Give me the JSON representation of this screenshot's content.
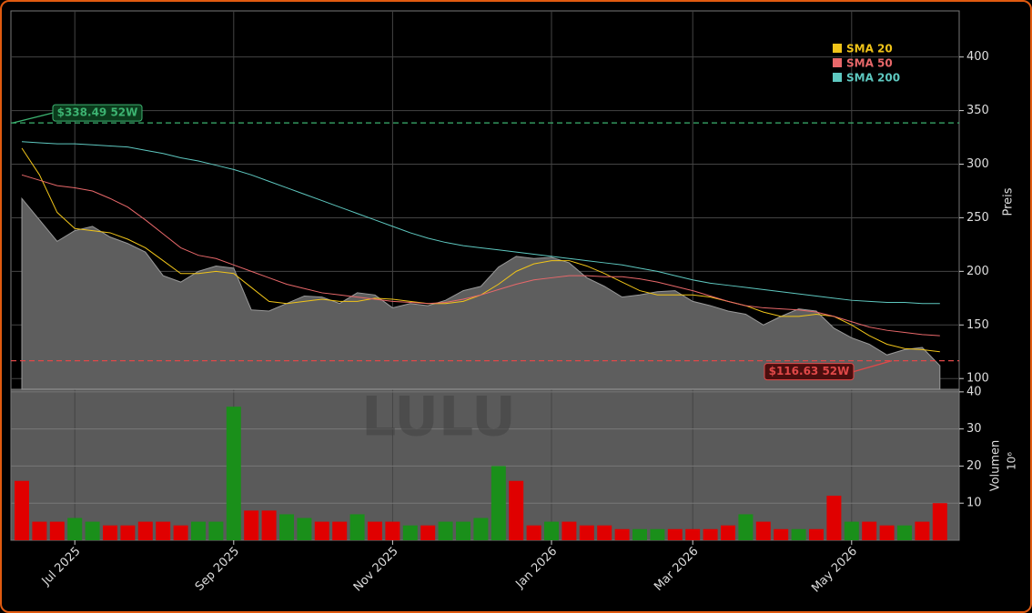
{
  "chart_data": [
    {
      "type": "area",
      "ylabel": "Preis",
      "watermark": "LULU",
      "values": [
        268,
        248,
        228,
        238,
        242,
        232,
        226,
        218,
        196,
        190,
        200,
        205,
        203,
        164,
        163,
        170,
        177,
        176,
        170,
        180,
        178,
        166,
        170,
        168,
        173,
        182,
        186,
        204,
        214,
        212,
        213,
        208,
        194,
        186,
        176,
        178,
        181,
        182,
        172,
        168,
        163,
        160,
        150,
        158,
        165,
        163,
        147,
        138,
        132,
        122,
        127,
        129,
        112
      ],
      "color": "#5e5e5e",
      "series": [
        {
          "name": "SMA 20",
          "color": "#f0c419",
          "values": [
            315,
            290,
            255,
            240,
            238,
            236,
            230,
            222,
            210,
            198,
            198,
            200,
            198,
            185,
            172,
            170,
            172,
            174,
            172,
            172,
            175,
            174,
            172,
            170,
            170,
            172,
            178,
            188,
            200,
            207,
            210,
            210,
            205,
            198,
            190,
            182,
            178,
            178,
            178,
            176,
            172,
            168,
            162,
            158,
            158,
            160,
            158,
            150,
            140,
            132,
            128,
            127,
            125
          ]
        },
        {
          "name": "SMA 50",
          "color": "#e8686a",
          "values": [
            290,
            285,
            280,
            278,
            275,
            268,
            260,
            248,
            235,
            222,
            215,
            212,
            206,
            200,
            194,
            188,
            184,
            180,
            178,
            176,
            174,
            172,
            171,
            170,
            171,
            174,
            178,
            183,
            188,
            192,
            194,
            196,
            196,
            195,
            195,
            193,
            190,
            186,
            182,
            177,
            172,
            168,
            166,
            165,
            164,
            162,
            158,
            153,
            148,
            145,
            143,
            141,
            140
          ]
        },
        {
          "name": "SMA 200",
          "color": "#5ec8c0",
          "values": [
            321,
            320,
            319,
            319,
            318,
            317,
            316,
            313,
            310,
            306,
            303,
            299,
            295,
            290,
            284,
            278,
            272,
            266,
            260,
            254,
            248,
            242,
            236,
            231,
            227,
            224,
            222,
            220,
            218,
            216,
            214,
            212,
            210,
            208,
            206,
            203,
            200,
            196,
            192,
            189,
            187,
            185,
            183,
            181,
            179,
            177,
            175,
            173,
            172,
            171,
            171,
            170,
            170
          ]
        }
      ],
      "lines": [
        {
          "value": 338.49,
          "label": "$338.49 52W",
          "color": "#3cb371"
        },
        {
          "value": 116.63,
          "label": "$116.63 52W",
          "color": "#e04848"
        }
      ],
      "ylim": [
        90,
        443
      ],
      "yticks": [
        100,
        150,
        200,
        250,
        300,
        350,
        400
      ],
      "grid": true,
      "legend": "top-right"
    },
    {
      "type": "bar",
      "ylabel": "Volumen",
      "unit_label": "10⁶",
      "categories": [
        null,
        null,
        null,
        "Jul 2025",
        null,
        null,
        null,
        null,
        null,
        null,
        null,
        null,
        "Sep 2025",
        null,
        null,
        null,
        null,
        null,
        null,
        null,
        null,
        "Nov 2025",
        null,
        null,
        null,
        null,
        null,
        null,
        null,
        null,
        "Jan 2026",
        null,
        null,
        null,
        null,
        null,
        null,
        null,
        "Mar 2026",
        null,
        null,
        null,
        null,
        null,
        null,
        null,
        null,
        "May 2026",
        null,
        null,
        null,
        null,
        null
      ],
      "values": [
        16,
        5,
        5,
        6,
        5,
        4,
        4,
        5,
        5,
        4,
        5,
        5,
        36,
        8,
        8,
        7,
        6,
        5,
        5,
        7,
        5,
        5,
        4,
        4,
        5,
        5,
        6,
        20,
        16,
        4,
        5,
        5,
        4,
        4,
        3,
        3,
        3,
        3,
        3,
        3,
        4,
        7,
        5,
        3,
        3,
        3,
        12,
        5,
        5,
        4,
        4,
        5,
        10
      ],
      "colors": [
        "#e00000",
        "#e00000",
        "#e00000",
        "#1a8f1a",
        "#1a8f1a",
        "#e00000",
        "#e00000",
        "#e00000",
        "#e00000",
        "#e00000",
        "#1a8f1a",
        "#1a8f1a",
        "#1a8f1a",
        "#e00000",
        "#e00000",
        "#1a8f1a",
        "#1a8f1a",
        "#e00000",
        "#e00000",
        "#1a8f1a",
        "#e00000",
        "#e00000",
        "#1a8f1a",
        "#e00000",
        "#1a8f1a",
        "#1a8f1a",
        "#1a8f1a",
        "#1a8f1a",
        "#e00000",
        "#e00000",
        "#1a8f1a",
        "#e00000",
        "#e00000",
        "#e00000",
        "#e00000",
        "#1a8f1a",
        "#1a8f1a",
        "#e00000",
        "#e00000",
        "#e00000",
        "#e00000",
        "#1a8f1a",
        "#e00000",
        "#e00000",
        "#1a8f1a",
        "#e00000",
        "#e00000",
        "#1a8f1a",
        "#e00000",
        "#e00000",
        "#1a8f1a",
        "#e00000",
        "#e00000"
      ],
      "ylim": [
        0,
        40.7
      ],
      "yticks": [
        10,
        20,
        30,
        40
      ],
      "grid": true
    }
  ]
}
